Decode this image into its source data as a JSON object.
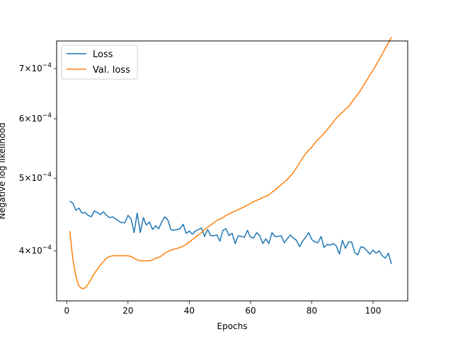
{
  "chart_data": {
    "type": "line",
    "title": "",
    "xlabel": "Epochs",
    "ylabel": "Negative log likelihood",
    "xlim": [
      -3.3,
      111.3
    ],
    "ylim": [
      0.000343,
      0.000762
    ],
    "yscale": "log",
    "grid": false,
    "legend_position": "top-left",
    "x_ticks": [
      {
        "value": 0,
        "label": "0"
      },
      {
        "value": 20,
        "label": "20"
      },
      {
        "value": 40,
        "label": "40"
      },
      {
        "value": 60,
        "label": "60"
      },
      {
        "value": 80,
        "label": "80"
      },
      {
        "value": 100,
        "label": "100"
      }
    ],
    "y_ticks": [
      {
        "value": 0.0004,
        "mantissa": "4",
        "exponent": "-4"
      },
      {
        "value": 0.0005,
        "mantissa": "5",
        "exponent": "-4"
      },
      {
        "value": 0.0006,
        "mantissa": "6",
        "exponent": "-4"
      },
      {
        "value": 0.0007,
        "mantissa": "7",
        "exponent": "-4"
      }
    ],
    "series": [
      {
        "name": "Loss",
        "color": "#1f77b4",
        "x": [
          1,
          2,
          3,
          4,
          5,
          6,
          7,
          8,
          9,
          10,
          11,
          12,
          13,
          14,
          15,
          16,
          17,
          18,
          19,
          20,
          21,
          22,
          23,
          24,
          25,
          26,
          27,
          28,
          29,
          30,
          31,
          32,
          33,
          34,
          35,
          36,
          37,
          38,
          39,
          40,
          41,
          42,
          43,
          44,
          45,
          46,
          47,
          48,
          49,
          50,
          51,
          52,
          53,
          54,
          55,
          56,
          57,
          58,
          59,
          60,
          61,
          62,
          63,
          64,
          65,
          66,
          67,
          68,
          69,
          70,
          71,
          72,
          73,
          74,
          75,
          76,
          77,
          78,
          79,
          80,
          81,
          82,
          83,
          84,
          85,
          86,
          87,
          88,
          89,
          90,
          91,
          92,
          93,
          94,
          95,
          96,
          97,
          98,
          99,
          100,
          101,
          102,
          103,
          104,
          105,
          106
        ],
        "values": [
          0.000466,
          0.000463,
          0.000453,
          0.000456,
          0.000449,
          0.00045,
          0.000446,
          0.000444,
          0.000452,
          0.00045,
          0.000447,
          0.000451,
          0.000446,
          0.000443,
          0.000444,
          0.000441,
          0.000438,
          0.000436,
          0.000436,
          0.000446,
          0.000441,
          0.000423,
          0.000449,
          0.000423,
          0.000443,
          0.000433,
          0.000437,
          0.000427,
          0.000432,
          0.000428,
          0.000437,
          0.000444,
          0.00044,
          0.000427,
          0.000426,
          0.000427,
          0.000428,
          0.000434,
          0.000422,
          0.000425,
          0.000421,
          0.000425,
          0.000427,
          0.000429,
          0.000418,
          0.000427,
          0.000419,
          0.000419,
          0.00042,
          0.000412,
          0.000426,
          0.000428,
          0.000419,
          0.000422,
          0.000409,
          0.000419,
          0.000418,
          0.000417,
          0.000426,
          0.000417,
          0.000416,
          0.000423,
          0.000419,
          0.000409,
          0.000415,
          0.000409,
          0.000423,
          0.000418,
          0.000418,
          0.000419,
          0.00041,
          0.000415,
          0.00042,
          0.000416,
          0.000413,
          0.000405,
          0.000412,
          0.000417,
          0.000423,
          0.000414,
          0.000411,
          0.00041,
          0.000418,
          0.000404,
          0.000408,
          0.000407,
          0.000409,
          0.000406,
          0.000396,
          0.000413,
          0.000403,
          0.000411,
          0.000411,
          0.000398,
          0.000395,
          0.000405,
          0.000404,
          0.0004,
          0.000396,
          0.000401,
          0.000397,
          0.0004,
          0.000394,
          0.000391,
          0.000397,
          0.000384
        ]
      },
      {
        "name": "Val. loss",
        "color": "#ff7f0e",
        "x": [
          1,
          2,
          3,
          4,
          5,
          6,
          7,
          8,
          9,
          10,
          11,
          12,
          13,
          14,
          15,
          16,
          17,
          18,
          19,
          20,
          21,
          22,
          23,
          24,
          25,
          26,
          27,
          28,
          29,
          30,
          31,
          32,
          33,
          34,
          35,
          36,
          37,
          38,
          39,
          40,
          41,
          42,
          43,
          44,
          45,
          46,
          47,
          48,
          49,
          50,
          51,
          52,
          53,
          54,
          55,
          56,
          57,
          58,
          59,
          60,
          61,
          62,
          63,
          64,
          65,
          66,
          67,
          68,
          69,
          70,
          71,
          72,
          73,
          74,
          75,
          76,
          77,
          78,
          79,
          80,
          81,
          82,
          83,
          84,
          85,
          86,
          87,
          88,
          89,
          90,
          91,
          92,
          93,
          94,
          95,
          96,
          97,
          98,
          99,
          100,
          101,
          102,
          103,
          104,
          105,
          106
        ],
        "values": [
          0.000425,
          0.00039,
          0.000369,
          0.000359,
          0.000356,
          0.000357,
          0.000361,
          0.000367,
          0.000373,
          0.000378,
          0.000383,
          0.000387,
          0.000391,
          0.000393,
          0.000394,
          0.000394,
          0.000394,
          0.000394,
          0.000394,
          0.000394,
          0.000393,
          0.000391,
          0.000389,
          0.000388,
          0.000388,
          0.000388,
          0.000388,
          0.000389,
          0.000391,
          0.000392,
          0.000394,
          0.000397,
          0.000399,
          0.000401,
          0.000402,
          0.000403,
          0.000404,
          0.000406,
          0.000408,
          0.000411,
          0.000414,
          0.000417,
          0.00042,
          0.000423,
          0.000427,
          0.00043,
          0.000433,
          0.000436,
          0.000439,
          0.000441,
          0.000443,
          0.000446,
          0.000448,
          0.00045,
          0.000452,
          0.000454,
          0.000456,
          0.000458,
          0.00046,
          0.000463,
          0.000465,
          0.000467,
          0.000469,
          0.000471,
          0.000473,
          0.000475,
          0.000479,
          0.000482,
          0.000486,
          0.00049,
          0.000494,
          0.000498,
          0.000503,
          0.000509,
          0.000516,
          0.000524,
          0.000532,
          0.000539,
          0.000545,
          0.00055,
          0.000557,
          0.000563,
          0.000568,
          0.000574,
          0.00058,
          0.000587,
          0.000594,
          0.000601,
          0.000607,
          0.000612,
          0.000618,
          0.000623,
          0.000631,
          0.000639,
          0.000647,
          0.000656,
          0.000666,
          0.000676,
          0.000687,
          0.000697,
          0.000708,
          0.00072,
          0.000732,
          0.000745,
          0.000758,
          0.000771
        ]
      }
    ]
  }
}
